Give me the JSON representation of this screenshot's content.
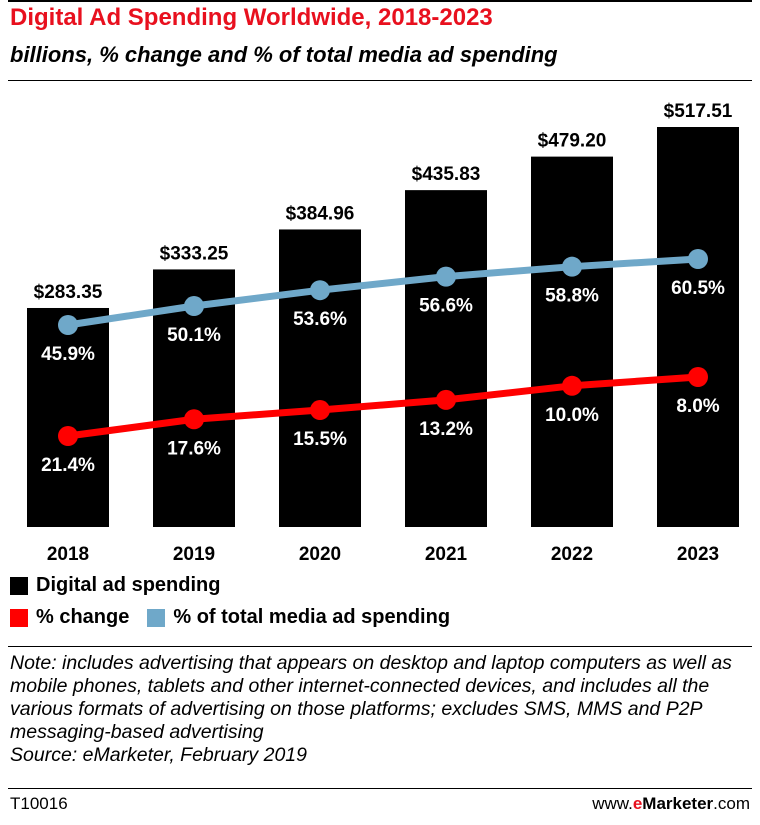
{
  "title": "Digital Ad Spending Worldwide, 2018-2023",
  "subtitle": "billions, % change and % of total media ad spending",
  "colors": {
    "title": "#e8101e",
    "bars": "#000000",
    "change": "#ff0000",
    "share": "#6fa8c9"
  },
  "legend": {
    "spending": "Digital ad spending",
    "change": "% change",
    "share": "% of total media ad spending"
  },
  "note": "Note: includes advertising that appears on desktop and laptop computers as well as mobile phones, tablets and other internet-connected devices, and includes all the various formats of advertising on those platforms; excludes SMS, MMS and P2P messaging-based advertising",
  "source": "Source: eMarketer, February 2019",
  "footer": {
    "code": "T10016",
    "brand_pre": "www.",
    "brand_e": "e",
    "brand_marketer": "Marketer",
    "brand_post": ".com"
  },
  "chart_data": {
    "type": "bar",
    "categories": [
      "2018",
      "2019",
      "2020",
      "2021",
      "2022",
      "2023"
    ],
    "series": [
      {
        "name": "Digital ad spending",
        "type": "bar",
        "values": [
          283.35,
          333.25,
          384.96,
          435.83,
          479.2,
          517.51
        ],
        "labels": [
          "$283.35",
          "$333.25",
          "$384.96",
          "$435.83",
          "$479.20",
          "$517.51"
        ]
      },
      {
        "name": "% change",
        "type": "line",
        "values": [
          21.4,
          17.6,
          15.5,
          13.2,
          10.0,
          8.0
        ],
        "labels": [
          "21.4%",
          "17.6%",
          "15.5%",
          "13.2%",
          "10.0%",
          "8.0%"
        ]
      },
      {
        "name": "% of total media ad spending",
        "type": "line",
        "values": [
          45.9,
          50.1,
          53.6,
          56.6,
          58.8,
          60.5
        ],
        "labels": [
          "45.9%",
          "50.1%",
          "53.6%",
          "56.6%",
          "58.8%",
          "60.5%"
        ]
      }
    ],
    "grid": false,
    "legend_position": "bottom-left"
  }
}
